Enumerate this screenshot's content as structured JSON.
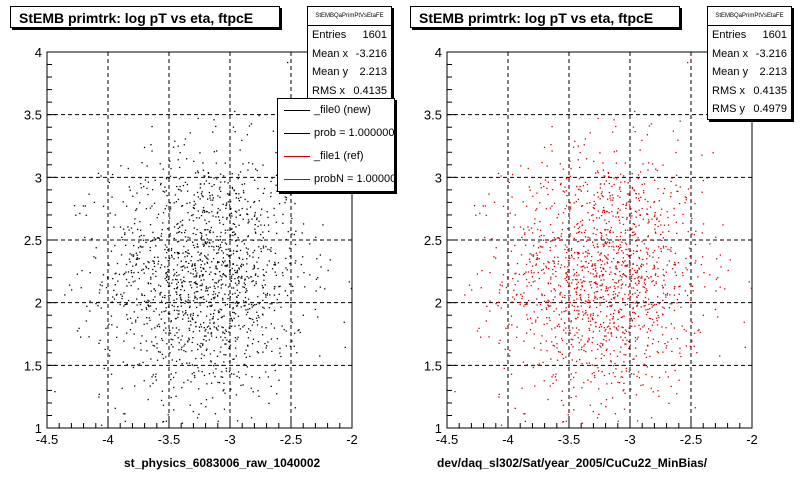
{
  "chart_data": [
    {
      "type": "scatter",
      "title": "StEMB primtrk: log pT vs eta, ftpcE",
      "xlabel": "st_physics_6083006_raw_1040002",
      "ylabel": "",
      "xlim": [
        -4.5,
        -2
      ],
      "ylim": [
        1,
        4
      ],
      "xticks": [
        "-4.5",
        "-4",
        "-3.5",
        "-3",
        "-2.5",
        "-2"
      ],
      "yticks": [
        "1",
        "1.5",
        "2",
        "2.5",
        "3",
        "3.5",
        "4"
      ],
      "grid": true,
      "marker_color": "#000000",
      "series": [
        {
          "name": "_file0 (new)",
          "n_points": 1601,
          "mean_x": -3.216,
          "mean_y": 2.213,
          "rms_x": 0.4135
        }
      ],
      "stats": {
        "title": "StEMBQaPrimPtVsEtaFE",
        "rows": [
          {
            "label": "Entries",
            "value": "1601"
          },
          {
            "label": "Mean x",
            "value": "-3.216"
          },
          {
            "label": "Mean y",
            "value": "2.213"
          },
          {
            "label": "RMS x",
            "value": "0.4135"
          }
        ]
      },
      "legend": {
        "placement": "top-right",
        "entries": [
          {
            "label": "_file0 (new)",
            "color": "#000000"
          },
          {
            "label": "prob = 1.000000",
            "color": "#000000"
          },
          {
            "label": "_file1 (ref)",
            "color": "#cc0000"
          },
          {
            "label": "probN = 1.000000",
            "color": "#cc0000"
          }
        ]
      }
    },
    {
      "type": "scatter",
      "title": "StEMB primtrk: log pT vs eta, ftpcE",
      "xlabel": "dev/daq_sl302/Sat/year_2005/CuCu22_MinBias/",
      "ylabel": "",
      "xlim": [
        -4.5,
        -2
      ],
      "ylim": [
        1,
        4
      ],
      "xticks": [
        "-4.5",
        "-4",
        "-3.5",
        "-3",
        "-2.5",
        "-2"
      ],
      "yticks": [
        "1",
        "1.5",
        "2",
        "2.5",
        "3",
        "3.5",
        "4"
      ],
      "grid": true,
      "marker_color": "#cc0000",
      "series": [
        {
          "name": "_file1 (ref)",
          "n_points": 1601,
          "mean_x": -3.216,
          "mean_y": 2.213,
          "rms_x": 0.4135,
          "rms_y": 0.4979
        }
      ],
      "stats": {
        "title": "StEMBQaPrimPtVsEtaFE",
        "rows": [
          {
            "label": "Entries",
            "value": "1601"
          },
          {
            "label": "Mean x",
            "value": "-3.216"
          },
          {
            "label": "Mean y",
            "value": "2.213"
          },
          {
            "label": "RMS x",
            "value": "0.4135"
          },
          {
            "label": "RMS y",
            "value": "0.4979"
          }
        ]
      }
    }
  ]
}
